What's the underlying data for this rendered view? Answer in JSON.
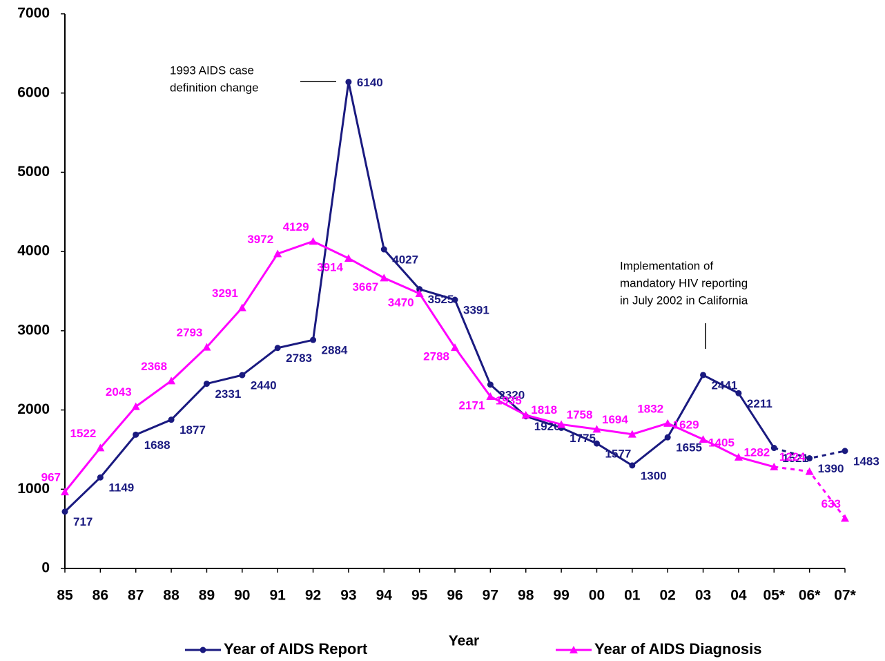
{
  "chart_data": {
    "type": "line",
    "x_label": "Year",
    "categories": [
      "85",
      "86",
      "87",
      "88",
      "89",
      "90",
      "91",
      "92",
      "93",
      "94",
      "95",
      "96",
      "97",
      "98",
      "99",
      "00",
      "01",
      "02",
      "03",
      "04",
      "05*",
      "06*",
      "07*"
    ],
    "series": [
      {
        "name": "Year of AIDS Report",
        "color": "#1a1a80",
        "marker": "circle",
        "values": [
          717,
          1149,
          1688,
          1877,
          2331,
          2440,
          2783,
          2884,
          6140,
          4027,
          3525,
          3391,
          2320,
          1920,
          1775,
          1577,
          1300,
          1655,
          2441,
          2211,
          1521,
          1390,
          1483
        ]
      },
      {
        "name": "Year of AIDS Diagnosis",
        "color": "#ff00ff",
        "marker": "triangle",
        "values": [
          967,
          1522,
          2043,
          2368,
          2793,
          3291,
          3972,
          4129,
          3914,
          3667,
          3470,
          2788,
          2171,
          1935,
          1818,
          1758,
          1694,
          1832,
          1629,
          1405,
          1282,
          1224,
          633
        ]
      }
    ],
    "ylim": [
      0,
      7000
    ],
    "yticks": [
      0,
      1000,
      2000,
      3000,
      4000,
      5000,
      6000,
      7000
    ],
    "annotations": [
      {
        "lines": [
          "1993 AIDS case",
          "definition change"
        ]
      },
      {
        "lines": [
          "Implementation of",
          "mandatory HIV reporting",
          "in July 2002 in California"
        ]
      }
    ]
  }
}
